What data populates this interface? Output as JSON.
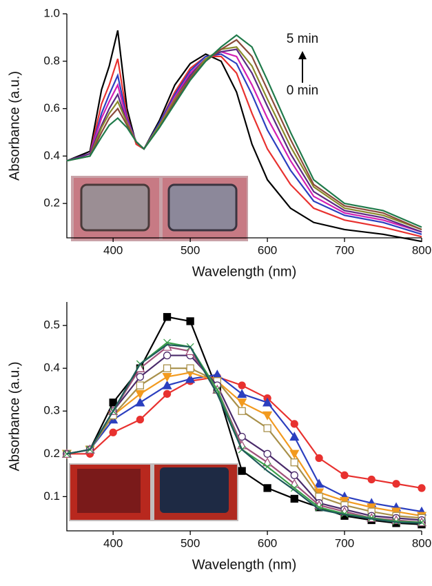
{
  "chart_data": [
    {
      "type": "line",
      "xlabel": "Wavelength (nm)",
      "ylabel": "Absorbance (a.u.)",
      "xlim": [
        340,
        800
      ],
      "ylim": [
        0.055,
        1.0
      ],
      "xticks": [
        400,
        500,
        600,
        700,
        800
      ],
      "yticks": [
        0.2,
        0.4,
        0.6,
        0.8,
        {
          "value": 1,
          "label": "1.0"
        }
      ],
      "annotations": [
        "5 min",
        "0 min"
      ],
      "x": [
        340,
        370,
        385,
        395,
        406,
        418,
        430,
        440,
        460,
        480,
        500,
        520,
        540,
        560,
        580,
        600,
        630,
        660,
        700,
        750,
        800
      ],
      "series": [
        {
          "color": "#000000",
          "values": [
            0.38,
            0.42,
            0.68,
            0.78,
            0.93,
            0.6,
            0.45,
            0.43,
            0.55,
            0.7,
            0.79,
            0.83,
            0.8,
            0.67,
            0.45,
            0.3,
            0.18,
            0.12,
            0.09,
            0.07,
            0.04
          ]
        },
        {
          "color": "#e8312f",
          "values": [
            0.38,
            0.41,
            0.62,
            0.7,
            0.81,
            0.57,
            0.45,
            0.43,
            0.54,
            0.67,
            0.77,
            0.82,
            0.82,
            0.75,
            0.58,
            0.43,
            0.28,
            0.18,
            0.13,
            0.1,
            0.06
          ]
        },
        {
          "color": "#2b3fbf",
          "values": [
            0.38,
            0.41,
            0.58,
            0.66,
            0.74,
            0.56,
            0.46,
            0.43,
            0.54,
            0.66,
            0.76,
            0.82,
            0.83,
            0.79,
            0.66,
            0.51,
            0.34,
            0.21,
            0.15,
            0.12,
            0.07
          ]
        },
        {
          "color": "#d21fb4",
          "values": [
            0.38,
            0.41,
            0.56,
            0.63,
            0.7,
            0.55,
            0.46,
            0.43,
            0.53,
            0.65,
            0.75,
            0.81,
            0.84,
            0.82,
            0.7,
            0.56,
            0.38,
            0.23,
            0.16,
            0.13,
            0.08
          ]
        },
        {
          "color": "#5a2a82",
          "values": [
            0.38,
            0.41,
            0.53,
            0.6,
            0.66,
            0.54,
            0.46,
            0.43,
            0.53,
            0.64,
            0.74,
            0.81,
            0.84,
            0.85,
            0.75,
            0.61,
            0.41,
            0.25,
            0.17,
            0.14,
            0.08
          ]
        },
        {
          "color": "#8a8a2a",
          "values": [
            0.38,
            0.4,
            0.52,
            0.58,
            0.63,
            0.54,
            0.46,
            0.43,
            0.53,
            0.64,
            0.73,
            0.81,
            0.85,
            0.86,
            0.78,
            0.64,
            0.44,
            0.27,
            0.18,
            0.15,
            0.09
          ]
        },
        {
          "color": "#8a4a3a",
          "values": [
            0.38,
            0.4,
            0.5,
            0.56,
            0.6,
            0.53,
            0.46,
            0.43,
            0.52,
            0.63,
            0.73,
            0.8,
            0.85,
            0.89,
            0.82,
            0.68,
            0.47,
            0.28,
            0.19,
            0.16,
            0.09
          ]
        },
        {
          "color": "#1f7a4a",
          "values": [
            0.38,
            0.4,
            0.48,
            0.53,
            0.56,
            0.52,
            0.46,
            0.43,
            0.52,
            0.62,
            0.72,
            0.8,
            0.86,
            0.91,
            0.86,
            0.72,
            0.5,
            0.3,
            0.2,
            0.17,
            0.1
          ]
        }
      ]
    },
    {
      "type": "line",
      "xlabel": "Wavelength (nm)",
      "ylabel": "Absorbance (a.u.)",
      "xlim": [
        340,
        800
      ],
      "ylim": [
        0.02,
        0.555
      ],
      "xticks": [
        400,
        500,
        600,
        700,
        800
      ],
      "yticks": [
        0.1,
        0.2,
        0.3,
        0.4,
        0.5
      ],
      "x": [
        340,
        370,
        400,
        435,
        470,
        500,
        535,
        567,
        600,
        635,
        667,
        700,
        735,
        767,
        800
      ],
      "series": [
        {
          "color": "#000000",
          "marker": "square",
          "open": false,
          "values": [
            0.2,
            0.21,
            0.32,
            0.4,
            0.52,
            0.51,
            0.35,
            0.16,
            0.12,
            0.095,
            0.075,
            0.055,
            0.045,
            0.038,
            0.035
          ]
        },
        {
          "color": "#e8312f",
          "marker": "circle",
          "open": false,
          "values": [
            0.2,
            0.2,
            0.25,
            0.28,
            0.34,
            0.37,
            0.38,
            0.36,
            0.33,
            0.27,
            0.19,
            0.15,
            0.14,
            0.13,
            0.12
          ]
        },
        {
          "color": "#2b3fbf",
          "marker": "triangle",
          "open": false,
          "values": [
            0.2,
            0.21,
            0.28,
            0.32,
            0.36,
            0.375,
            0.385,
            0.34,
            0.32,
            0.24,
            0.13,
            0.1,
            0.085,
            0.075,
            0.065
          ]
        },
        {
          "color": "#f29a1f",
          "marker": "triangle-down",
          "open": false,
          "values": [
            0.2,
            0.21,
            0.29,
            0.34,
            0.38,
            0.39,
            0.37,
            0.32,
            0.29,
            0.2,
            0.11,
            0.09,
            0.075,
            0.065,
            0.055
          ]
        },
        {
          "color": "#a8904a",
          "marker": "square",
          "open": true,
          "values": [
            0.2,
            0.21,
            0.29,
            0.36,
            0.4,
            0.4,
            0.37,
            0.3,
            0.26,
            0.18,
            0.1,
            0.08,
            0.065,
            0.055,
            0.05
          ]
        },
        {
          "color": "#4a2a6a",
          "marker": "circle",
          "open": true,
          "values": [
            0.2,
            0.21,
            0.3,
            0.38,
            0.43,
            0.43,
            0.36,
            0.24,
            0.2,
            0.15,
            0.085,
            0.07,
            0.055,
            0.05,
            0.045
          ]
        },
        {
          "color": "#a0507a",
          "marker": "triangle",
          "open": true,
          "values": [
            0.2,
            0.21,
            0.3,
            0.4,
            0.45,
            0.44,
            0.35,
            0.22,
            0.18,
            0.13,
            0.08,
            0.065,
            0.05,
            0.045,
            0.04
          ]
        },
        {
          "color": "#3aa04a",
          "marker": "cross",
          "open": true,
          "values": [
            0.2,
            0.21,
            0.3,
            0.41,
            0.46,
            0.45,
            0.35,
            0.21,
            0.17,
            0.12,
            0.075,
            0.06,
            0.05,
            0.042,
            0.04
          ]
        },
        {
          "color": "#1f5a5a",
          "marker": "none",
          "open": true,
          "values": [
            0.2,
            0.21,
            0.3,
            0.41,
            0.455,
            0.45,
            0.34,
            0.21,
            0.16,
            0.115,
            0.07,
            0.058,
            0.048,
            0.04,
            0.038
          ]
        }
      ]
    }
  ]
}
